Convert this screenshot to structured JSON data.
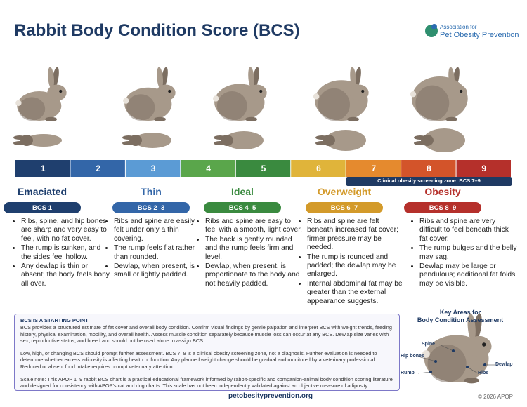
{
  "header": {
    "title": "Rabbit Body Condition Score (BCS)",
    "logo_line1": "Association for",
    "logo_line2": "Pet Obesity Prevention"
  },
  "scale": {
    "scores": [
      "1",
      "2",
      "3",
      "4",
      "5",
      "6",
      "7",
      "8",
      "9"
    ],
    "zone_note": "Clinical obesity screening zone: BCS 7–9"
  },
  "categories": [
    {
      "name": "Emaciated",
      "badge": "BCS 1",
      "bullets": [
        "Ribs, spine, and hip bones are sharp and very easy to feel, with no fat cover.",
        "The rump is sunken, and the sides feel hollow.",
        "Any dewlap is thin or absent; the body feels bony all over."
      ]
    },
    {
      "name": "Thin",
      "badge": "BCS 2–3",
      "bullets": [
        "Ribs and spine are easily felt under only a thin covering.",
        "The rump feels flat rather than rounded.",
        "Dewlap, when present, is small or lightly padded."
      ]
    },
    {
      "name": "Ideal",
      "badge": "BCS 4–5",
      "bullets": [
        "Ribs and spine are easy to feel with a smooth, light cover.",
        "The back is gently rounded and the rump feels firm and level.",
        "Dewlap, when present, is proportionate to the body and not heavily padded."
      ]
    },
    {
      "name": "Overweight",
      "badge": "BCS 6–7",
      "bullets": [
        "Ribs and spine are felt beneath increased fat cover; firmer pressure may be needed.",
        "The rump is rounded and padded; the dewlap may be enlarged.",
        "Internal abdominal fat may be greater than the external appearance suggests."
      ]
    },
    {
      "name": "Obesity",
      "badge": "BCS 8–9",
      "bullets": [
        "Ribs and spine are very difficult to feel beneath thick fat cover.",
        "The rump bulges and the belly may sag.",
        "Dewlap may be large or pendulous; additional fat folds may be visible."
      ]
    }
  ],
  "info_box": {
    "heading": "BCS IS A STARTING POINT",
    "paragraphs": [
      "BCS provides a structured estimate of fat cover and overall body condition. Confirm visual findings by gentle palpation and interpret BCS with weight trends, feeding history, physical examination, mobility, and overall health. Assess muscle condition separately because muscle loss can occur at any BCS. Dewlap size varies with sex, reproductive status, and breed and should not be used alone to assign BCS.",
      "Low, high, or changing BCS should prompt further assessment. BCS 7–9 is a clinical obesity screening zone, not a diagnosis. Further evaluation is needed to determine whether excess adiposity is affecting health or function. Any planned weight change should be gradual and monitored by a veterinary professional. Reduced or absent food intake requires prompt veterinary attention.",
      "Scale note: This APOP 1–9 rabbit BCS chart is a practical educational framework informed by rabbit-specific and companion-animal body condition scoring literature and designed for consistency with APOP’s cat and dog charts. This scale has not been independently validated against an objective measure of adiposity."
    ]
  },
  "key_areas": {
    "title_line1": "Key Areas for",
    "title_line2": "Body Condition Assessment",
    "labels": [
      "Spine",
      "Hip bones",
      "Rump",
      "Ribs",
      "Dewlap"
    ]
  },
  "footer": {
    "url": "petobesityprevention.org",
    "copyright": "© 2026 APOP"
  }
}
